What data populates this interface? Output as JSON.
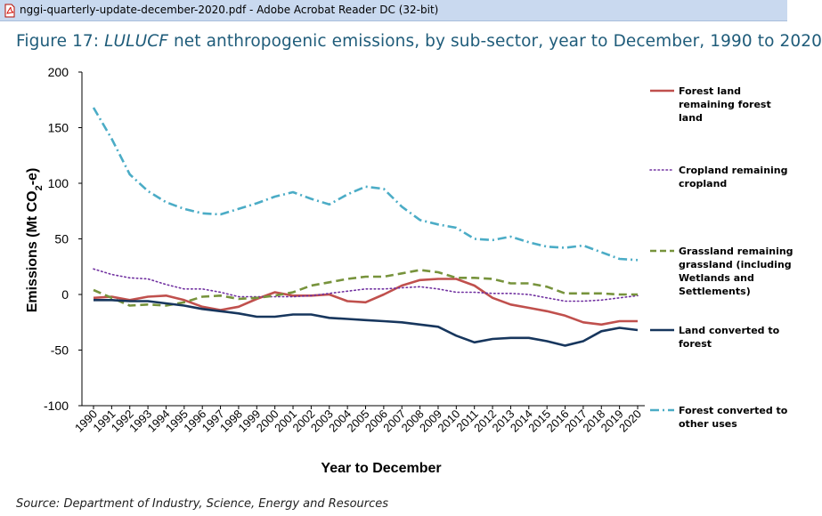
{
  "window": {
    "title": "nggi-quarterly-update-december-2020.pdf - Adobe Acrobat Reader DC (32-bit)",
    "icon": "pdf-file-icon"
  },
  "figure": {
    "title_prefix": "Figure 17: ",
    "title_italic": "LULUCF",
    "title_rest": " net anthropogenic emissions, by sub-sector, year to December, 1990 to 2020",
    "source": "Source: Department of Industry, Science, Energy and Resources"
  },
  "chart_data": {
    "type": "line",
    "xlabel": "Year to December",
    "ylabel_main": "Emissions (Mt CO",
    "ylabel_sub": "2",
    "ylabel_end": "-e)",
    "ylim": [
      -100,
      200
    ],
    "yticks": [
      200,
      150,
      100,
      50,
      0,
      -50,
      -100
    ],
    "x": [
      "1990",
      "1991",
      "1992",
      "1993",
      "1994",
      "1995",
      "1996",
      "1997",
      "1998",
      "1999",
      "2000",
      "2001",
      "2002",
      "2003",
      "2004",
      "2005",
      "2006",
      "2007",
      "2008",
      "2009",
      "2010",
      "2011",
      "2012",
      "2013",
      "2014",
      "2015",
      "2016",
      "2017",
      "2018",
      "2019",
      "2020"
    ],
    "grid": false,
    "legend_position": "right",
    "series": [
      {
        "name": "Forest land remaining forest land",
        "color": "#c0504d",
        "dash": "solid",
        "values": [
          -3,
          -2,
          -5,
          -2,
          -1,
          -5,
          -11,
          -14,
          -11,
          -4,
          2,
          -1,
          -1,
          0,
          -6,
          -7,
          0,
          8,
          13,
          14,
          14,
          8,
          -3,
          -9,
          -12,
          -15,
          -19,
          -25,
          -27,
          -24,
          -24
        ]
      },
      {
        "name": "Cropland remaining cropland",
        "color": "#7030a0",
        "dash": "dot",
        "values": [
          23,
          18,
          15,
          14,
          9,
          5,
          5,
          2,
          -2,
          -2,
          -2,
          -2,
          -1,
          1,
          3,
          5,
          5,
          6,
          7,
          5,
          2,
          2,
          1,
          1,
          0,
          -3,
          -6,
          -6,
          -5,
          -3,
          -1
        ]
      },
      {
        "name": "Grassland remaining grassland (including Wetlands and Settlements)",
        "color": "#77933c",
        "dash": "dash",
        "values": [
          4,
          -3,
          -10,
          -9,
          -10,
          -7,
          -2,
          -1,
          -4,
          -3,
          -1,
          2,
          8,
          11,
          14,
          16,
          16,
          19,
          22,
          20,
          15,
          15,
          14,
          10,
          10,
          7,
          1,
          1,
          1,
          0,
          0
        ]
      },
      {
        "name": "Land converted to forest",
        "color": "#17365d",
        "dash": "solid",
        "values": [
          -5,
          -5,
          -6,
          -6,
          -8,
          -10,
          -13,
          -15,
          -17,
          -20,
          -20,
          -18,
          -18,
          -21,
          -22,
          -23,
          -24,
          -25,
          -27,
          -29,
          -37,
          -43,
          -40,
          -39,
          -39,
          -42,
          -46,
          -42,
          -33,
          -30,
          -32
        ]
      },
      {
        "name": "Forest converted to other uses",
        "color": "#4bacc6",
        "dash": "dashdot",
        "values": [
          168,
          140,
          108,
          93,
          83,
          77,
          73,
          72,
          77,
          82,
          88,
          92,
          86,
          81,
          90,
          97,
          95,
          79,
          67,
          63,
          60,
          50,
          49,
          52,
          47,
          43,
          42,
          44,
          38,
          32,
          31
        ]
      }
    ]
  }
}
